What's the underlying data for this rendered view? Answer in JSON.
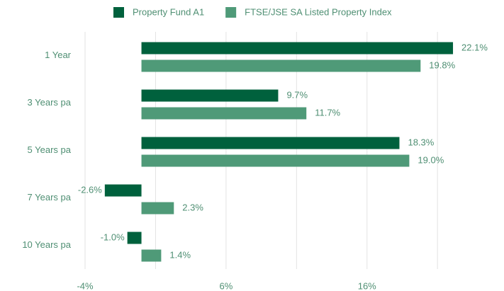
{
  "chart_data": {
    "type": "bar",
    "orientation": "horizontal",
    "categories": [
      "1 Year",
      "3 Years pa",
      "5 Years pa",
      "7 Years pa",
      "10 Years pa"
    ],
    "series": [
      {
        "name": "Property Fund A1",
        "color": "#00613d",
        "values": [
          22.1,
          9.7,
          18.3,
          -2.6,
          -1.0
        ],
        "value_labels": [
          "22.1%",
          "9.7%",
          "18.3%",
          "-2.6%",
          "-1.0%"
        ]
      },
      {
        "name": "FTSE/JSE SA Listed Property Index",
        "color": "#4f9a78",
        "values": [
          19.8,
          11.7,
          19.0,
          2.3,
          1.4
        ],
        "value_labels": [
          "19.8%",
          "11.7%",
          "19.0%",
          "2.3%",
          "1.4%"
        ]
      }
    ],
    "xlim": [
      -4,
      22.5
    ],
    "xticks": [
      {
        "value": -4,
        "label": "-4%"
      },
      {
        "value": 1,
        "label": null
      },
      {
        "value": 6,
        "label": "6%"
      },
      {
        "value": 11,
        "label": null
      },
      {
        "value": 16,
        "label": "16%"
      },
      {
        "value": 21,
        "label": null
      }
    ],
    "grid": true,
    "legend": "top"
  }
}
